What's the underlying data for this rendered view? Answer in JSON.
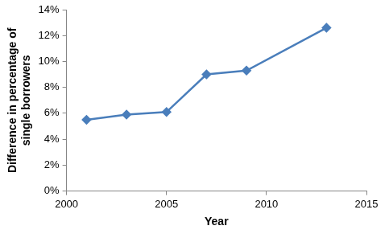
{
  "chart_data": {
    "type": "line",
    "x_label": "Year",
    "y_label": [
      "Difference in percentage of",
      "single borrowers"
    ],
    "x": [
      2001,
      2003,
      2005,
      2007,
      2009,
      2013
    ],
    "series": [
      {
        "name": "Difference in percentage of single borrowers",
        "color": "#4a7ebb",
        "values": [
          5.5,
          5.9,
          6.1,
          9.0,
          9.3,
          12.6
        ],
        "marker": "diamond",
        "line_style": "solid"
      }
    ],
    "xlim": [
      2000,
      2015
    ],
    "xticks": [
      2000,
      2005,
      2010,
      2015
    ],
    "ylim": [
      0,
      14
    ],
    "yticks": [
      {
        "value": 0,
        "label": "0%"
      },
      {
        "value": 2,
        "label": "2%"
      },
      {
        "value": 4,
        "label": "4%"
      },
      {
        "value": 6,
        "label": "6%"
      },
      {
        "value": 8,
        "label": "8%"
      },
      {
        "value": 10,
        "label": "10%"
      },
      {
        "value": 12,
        "label": "12%"
      },
      {
        "value": 14,
        "label": "14%"
      }
    ],
    "grid": false
  }
}
